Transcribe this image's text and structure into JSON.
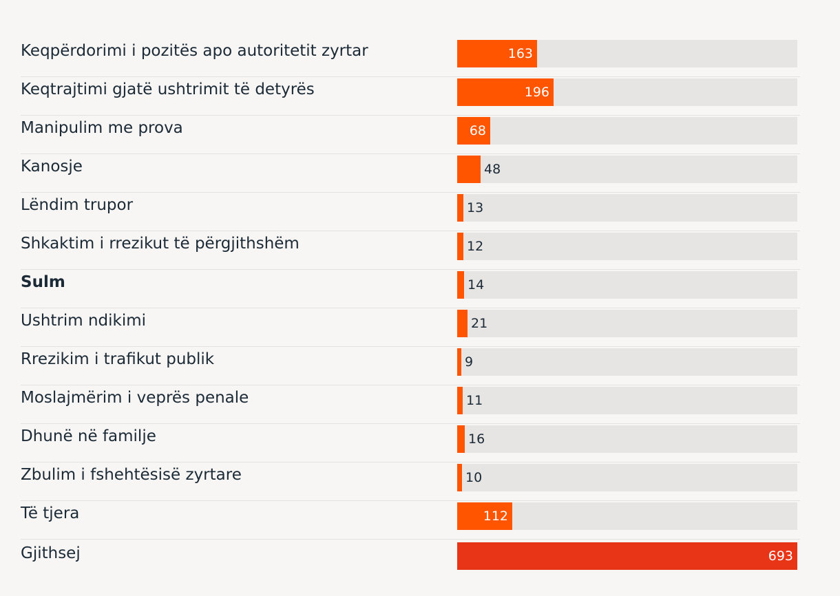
{
  "chart_data": {
    "type": "bar",
    "orientation": "horizontal",
    "categories": [
      "Keqpërdorimi i pozitës apo autoritetit zyrtar",
      "Keqtrajtimi gjatë ushtrimit të detyrës",
      "Manipulim me prova",
      "Kanosje",
      "Lëndim trupor",
      "Shkaktim i rrezikut të përgjithshëm",
      "Sulm",
      "Ushtrim ndikimi",
      "Rrezikim i trafikut publik",
      "Moslajmërim i veprës penale",
      "Dhunë në familje",
      "Zbulim i fshehtësisë zyrtare",
      "Të tjera",
      "Gjithsej"
    ],
    "values": [
      163,
      196,
      68,
      48,
      13,
      12,
      14,
      21,
      9,
      11,
      16,
      10,
      112,
      693
    ],
    "bold_categories": [
      "Sulm"
    ],
    "xlim": [
      0,
      693
    ],
    "grid": false,
    "legend": "none",
    "colors": {
      "bar": "#ff5500",
      "total_bar": "#e83518",
      "track": "#e6e5e3",
      "background": "#f7f6f4",
      "text": "#1b2a36",
      "separator": "#e3e1de"
    }
  }
}
